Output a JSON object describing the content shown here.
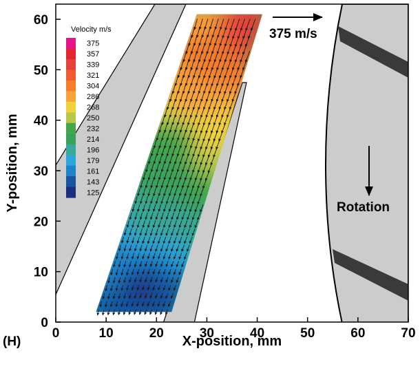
{
  "panel_label": "(H)",
  "chart_data": {
    "type": "scatter",
    "subtype": "velocity vector field (PIV) with color contours",
    "xlabel": "X-position, mm",
    "ylabel": "Y-position, mm",
    "xlim": [
      0,
      70
    ],
    "ylim": [
      0,
      63
    ],
    "xticks": [
      0,
      10,
      20,
      30,
      40,
      50,
      60,
      70
    ],
    "yticks": [
      0,
      10,
      20,
      30,
      40,
      50,
      60
    ],
    "grid": false,
    "colorbar": {
      "title": "Velocity m/s",
      "values": [
        375,
        357,
        339,
        321,
        304,
        286,
        268,
        250,
        232,
        214,
        196,
        179,
        161,
        143,
        125
      ],
      "colors": [
        "#e8148c",
        "#e32630",
        "#e8403a",
        "#ee5c30",
        "#f47e2a",
        "#f9a23a",
        "#f2d23a",
        "#b8c94a",
        "#44a84a",
        "#3aa35a",
        "#38a89a",
        "#2aa6dc",
        "#1e82cc",
        "#19559f",
        "#1a2f7f"
      ]
    },
    "reference_vector": {
      "label": "375 m/s",
      "magnitude": 375
    },
    "annotations": [
      {
        "text": "Rotation"
      }
    ],
    "field": {
      "region_corners": [
        [
          8,
          2
        ],
        [
          23,
          2
        ],
        [
          41,
          61
        ],
        [
          28,
          61
        ]
      ],
      "dominant_flow": "down and slightly left",
      "velocity_samples": [
        {
          "x": 17,
          "y": 8,
          "v": 140
        },
        {
          "x": 14,
          "y": 12,
          "v": 175
        },
        {
          "x": 20,
          "y": 20,
          "v": 200
        },
        {
          "x": 22,
          "y": 30,
          "v": 220
        },
        {
          "x": 26,
          "y": 36,
          "v": 235
        },
        {
          "x": 30,
          "y": 37,
          "v": 275
        },
        {
          "x": 28,
          "y": 45,
          "v": 290
        },
        {
          "x": 32,
          "y": 52,
          "v": 315
        },
        {
          "x": 37,
          "y": 59,
          "v": 345
        },
        {
          "x": 31,
          "y": 60,
          "v": 300
        }
      ]
    }
  }
}
